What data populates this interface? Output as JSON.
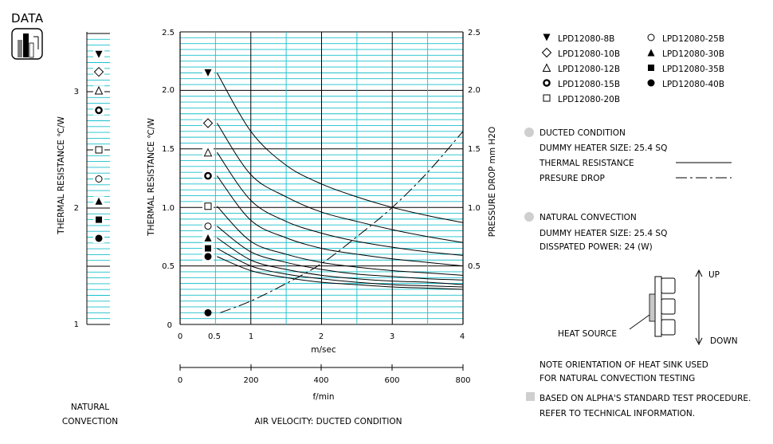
{
  "header": {
    "title": "DATA",
    "logo_icon": "bar-logo-icon"
  },
  "natural_panel": {
    "ylabel": "THERMAL  RESISTANCE   ℃/W",
    "yticks": [
      "3",
      "2",
      "1"
    ],
    "caption_line1": "NATURAL",
    "caption_line2": "CONVECTION"
  },
  "ducted_panel": {
    "ylabel_left": "THERMAL  RESISTANCE   ℃/W",
    "ylabel_right": "PRESSURE  DROP    mm H2O",
    "yticks_left": [
      "2.5",
      "2.0",
      "1.5",
      "1.0",
      "0.5",
      "0"
    ],
    "yticks_right": [
      "2.5",
      "2.0",
      "1.5",
      "1.0",
      "0.5"
    ],
    "xticks_ms": [
      "0",
      "0.5",
      "1",
      "2",
      "3",
      "4"
    ],
    "xlabel_ms": "m/sec",
    "xticks_fmin": [
      "0",
      "200",
      "400",
      "600",
      "800"
    ],
    "xlabel_fmin": "f/min",
    "caption": "AIR VELOCITY:  DUCTED CONDITION"
  },
  "legend": {
    "col1": [
      "LPD12080-8B",
      "LPD12080-10B",
      "LPD12080-12B",
      "LPD12080-15B",
      "LPD12080-20B"
    ],
    "col2": [
      "LPD12080-25B",
      "LPD12080-30B",
      "LPD12080-35B",
      "LPD12080-40B"
    ]
  },
  "notes": {
    "ducted_title": "DUCTED CONDITION",
    "ducted_heater": "DUMMY HEATER SIZE: 25.4 SQ",
    "thermal_resistance": "THERMAL RESISTANCE",
    "pressure_drop": "PRESURE DROP",
    "natural_title": "NATURAL CONVECTION",
    "natural_heater": "DUMMY HEATER SIZE: 25.4 SQ",
    "dissipated": "DISSPATED POWER:  24 (W)",
    "up": "UP",
    "down": "DOWN",
    "heat_source": "HEAT SOURCE",
    "orientation_1": "NOTE ORIENTATION OF HEAT SINK USED",
    "orientation_2": "FOR NATURAL CONVECTION TESTING",
    "based_1": "BASED ON ALPHA'S STANDARD TEST PROCEDURE.",
    "based_2": "REFER TO TECHNICAL INFORMATION."
  },
  "colors": {
    "grid": "#19c0cc",
    "major": "#000000",
    "bullet": "#cfcfcf"
  },
  "chart_data": [
    {
      "type": "scatter",
      "name_ref": "natural_panel",
      "ylabel": "THERMAL  RESISTANCE   ℃/W",
      "ylim": [
        1,
        3.5
      ],
      "series": [
        {
          "name": "LPD12080-8B",
          "marker": "tri-down-filled",
          "value": 3.32
        },
        {
          "name": "LPD12080-10B",
          "marker": "diamond-open",
          "value": 3.17
        },
        {
          "name": "LPD12080-12B",
          "marker": "tri-up-open",
          "value": 3.01
        },
        {
          "name": "LPD12080-15B",
          "marker": "circle-bold",
          "value": 2.84
        },
        {
          "name": "LPD12080-20B",
          "marker": "square-open",
          "value": 2.5
        },
        {
          "name": "LPD12080-25B",
          "marker": "circle-open",
          "value": 2.25
        },
        {
          "name": "LPD12080-30B",
          "marker": "tri-up-filled",
          "value": 2.06
        },
        {
          "name": "LPD12080-35B",
          "marker": "square-filled",
          "value": 1.9
        },
        {
          "name": "LPD12080-40B",
          "marker": "circle-filled",
          "value": 1.74
        }
      ]
    },
    {
      "type": "line",
      "name_ref": "ducted_panel",
      "xlabel": "m/sec",
      "ylabel": "THERMAL  RESISTANCE   ℃/W",
      "y2label": "PRESSURE  DROP    mm H2O",
      "xlim": [
        0,
        4
      ],
      "ylim": [
        0,
        2.5
      ],
      "y2lim": [
        0,
        2.5
      ],
      "x": [
        0.5,
        1,
        1.5,
        2,
        2.5,
        3,
        3.5,
        4
      ],
      "series": [
        {
          "name": "LPD12080-8B",
          "marker": "tri-down-filled",
          "values": [
            2.15,
            1.65,
            1.36,
            1.2,
            1.09,
            1.0,
            0.93,
            0.87
          ]
        },
        {
          "name": "LPD12080-10B",
          "marker": "diamond-open",
          "values": [
            1.72,
            1.28,
            1.09,
            0.96,
            0.88,
            0.81,
            0.75,
            0.7
          ]
        },
        {
          "name": "LPD12080-12B",
          "marker": "tri-up-open",
          "values": [
            1.47,
            1.06,
            0.88,
            0.78,
            0.71,
            0.66,
            0.62,
            0.59
          ]
        },
        {
          "name": "LPD12080-15B",
          "marker": "circle-bold",
          "values": [
            1.27,
            0.89,
            0.74,
            0.65,
            0.6,
            0.56,
            0.53,
            0.5
          ]
        },
        {
          "name": "LPD12080-20B",
          "marker": "square-open",
          "values": [
            1.01,
            0.71,
            0.6,
            0.53,
            0.49,
            0.46,
            0.44,
            0.42
          ]
        },
        {
          "name": "LPD12080-25B",
          "marker": "circle-open",
          "values": [
            0.84,
            0.62,
            0.53,
            0.47,
            0.43,
            0.41,
            0.39,
            0.38
          ]
        },
        {
          "name": "LPD12080-30B",
          "marker": "tri-up-filled",
          "values": [
            0.74,
            0.55,
            0.47,
            0.42,
            0.39,
            0.37,
            0.36,
            0.34
          ]
        },
        {
          "name": "LPD12080-35B",
          "marker": "square-filled",
          "values": [
            0.65,
            0.5,
            0.43,
            0.39,
            0.36,
            0.34,
            0.33,
            0.32
          ]
        },
        {
          "name": "LPD12080-40B",
          "marker": "circle-filled",
          "values": [
            0.58,
            0.46,
            0.4,
            0.36,
            0.34,
            0.32,
            0.31,
            0.3
          ]
        }
      ],
      "pressure_drop": {
        "name": "PRESURE DROP",
        "x": [
          0.5,
          1,
          1.5,
          2,
          2.5,
          3,
          3.5,
          4
        ],
        "values": [
          0.1,
          0.2,
          0.35,
          0.52,
          0.75,
          1.0,
          1.3,
          1.65
        ]
      }
    }
  ]
}
